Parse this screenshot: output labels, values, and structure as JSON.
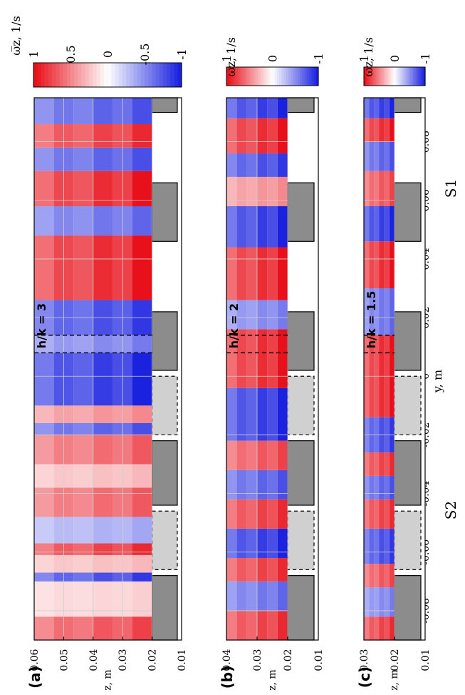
{
  "figure": {
    "panel_labels": [
      "(a)",
      "(b)",
      "(c)"
    ],
    "x_axis_label": "y, m",
    "y_axis_label": "z, m",
    "colorbar_label": "ω̅z, 1/s",
    "region_labels": {
      "left": "S2",
      "right": "S1"
    },
    "annotations": [
      "h/k = 3",
      "h/k = 2",
      "h/k = 1.5"
    ]
  },
  "colors": {
    "positive": "#e8101a",
    "negative": "#1a22e0",
    "wall_dark": "#8c8c8c",
    "wall_light": "#d0d0d0",
    "grid": "#cfcfcf"
  },
  "chart_data": [
    {
      "type": "heatmap",
      "panel": "(a)",
      "title": "h/k = 3",
      "xlabel": "y, m",
      "ylabel": "z, m",
      "xlim": [
        -0.09,
        0.095
      ],
      "ylim": [
        0.01,
        0.06
      ],
      "xticks": [
        -0.08,
        -0.06,
        -0.04,
        -0.02,
        0,
        0.02,
        0.04,
        0.06,
        0.08
      ],
      "yticks": [
        0.01,
        0.02,
        0.03,
        0.04,
        0.05,
        0.06
      ],
      "water_surface_z": 0.06,
      "bed_z": 0.02,
      "colorbar": {
        "label": "ω̅z, 1/s",
        "range": [
          -1,
          1
        ],
        "ticks": [
          1,
          0.5,
          0,
          -0.5,
          -1
        ]
      },
      "dashed_verticals_y": [
        0.008,
        0.014
      ],
      "vorticity_bands": [
        {
          "y": [
            -0.09,
            -0.082
          ],
          "sign": 0.8
        },
        {
          "y": [
            -0.082,
            -0.07
          ],
          "sign": 0.2
        },
        {
          "y": [
            -0.07,
            -0.067
          ],
          "sign": -0.9
        },
        {
          "y": [
            -0.067,
            -0.061
          ],
          "sign": 0.3
        },
        {
          "y": [
            -0.061,
            -0.057
          ],
          "sign": 0.9
        },
        {
          "y": [
            -0.057,
            -0.048
          ],
          "sign": -0.4
        },
        {
          "y": [
            -0.048,
            -0.038
          ],
          "sign": 0.7
        },
        {
          "y": [
            -0.038,
            -0.03
          ],
          "sign": 0.3
        },
        {
          "y": [
            -0.03,
            -0.02
          ],
          "sign": 0.7
        },
        {
          "y": [
            -0.02,
            -0.016
          ],
          "sign": -0.8
        },
        {
          "y": [
            -0.016,
            -0.01
          ],
          "sign": 0.5
        },
        {
          "y": [
            -0.01,
            0.008
          ],
          "sign": -1
        },
        {
          "y": [
            0.008,
            0.014
          ],
          "sign": -0.6
        },
        {
          "y": [
            0.014,
            0.026
          ],
          "sign": -0.9
        },
        {
          "y": [
            0.026,
            0.048
          ],
          "sign": 1
        },
        {
          "y": [
            0.048,
            0.058
          ],
          "sign": -0.7
        },
        {
          "y": [
            0.058,
            0.07
          ],
          "sign": 1
        },
        {
          "y": [
            0.07,
            0.078
          ],
          "sign": -0.8
        },
        {
          "y": [
            0.078,
            0.086
          ],
          "sign": 0.9
        },
        {
          "y": [
            0.086,
            0.095
          ],
          "sign": -0.8
        }
      ]
    },
    {
      "type": "heatmap",
      "panel": "(b)",
      "title": "h/k = 2",
      "xlabel": "y, m",
      "ylabel": "z, m",
      "xlim": [
        -0.09,
        0.095
      ],
      "ylim": [
        0.01,
        0.04
      ],
      "xticks": [
        -0.08,
        -0.06,
        -0.04,
        -0.02,
        0,
        0.02,
        0.04,
        0.06,
        0.08
      ],
      "yticks": [
        0.01,
        0.02,
        0.03,
        0.04
      ],
      "water_surface_z": 0.04,
      "bed_z": 0.02,
      "colorbar": {
        "label": "ω̅z, 1/s",
        "range": [
          -1,
          1
        ],
        "ticks": [
          1,
          0,
          -1
        ]
      },
      "dashed_verticals_y": [
        0.008,
        0.014
      ],
      "vorticity_bands": [
        {
          "y": [
            -0.09,
            -0.08
          ],
          "sign": 0.9
        },
        {
          "y": [
            -0.08,
            -0.07
          ],
          "sign": -0.7
        },
        {
          "y": [
            -0.07,
            -0.062
          ],
          "sign": 0.9
        },
        {
          "y": [
            -0.062,
            -0.052
          ],
          "sign": -1
        },
        {
          "y": [
            -0.052,
            -0.042
          ],
          "sign": 0.9
        },
        {
          "y": [
            -0.042,
            -0.032
          ],
          "sign": -0.8
        },
        {
          "y": [
            -0.032,
            -0.022
          ],
          "sign": 0.8
        },
        {
          "y": [
            -0.022,
            -0.004
          ],
          "sign": -1
        },
        {
          "y": [
            -0.004,
            0.016
          ],
          "sign": 1
        },
        {
          "y": [
            0.016,
            0.026
          ],
          "sign": -0.6
        },
        {
          "y": [
            0.026,
            0.044
          ],
          "sign": 1
        },
        {
          "y": [
            0.044,
            0.058
          ],
          "sign": -1
        },
        {
          "y": [
            0.058,
            0.068
          ],
          "sign": 0.5
        },
        {
          "y": [
            0.068,
            0.076
          ],
          "sign": -0.9
        },
        {
          "y": [
            0.076,
            0.088
          ],
          "sign": 1
        },
        {
          "y": [
            0.088,
            0.095
          ],
          "sign": -1
        }
      ]
    },
    {
      "type": "heatmap",
      "panel": "(c)",
      "title": "h/k = 1.5",
      "xlabel": "y, m",
      "ylabel": "z, m",
      "xlim": [
        -0.09,
        0.095
      ],
      "ylim": [
        0.01,
        0.03
      ],
      "xticks": [
        -0.08,
        -0.06,
        -0.04,
        -0.02,
        0,
        0.02,
        0.04,
        0.06,
        0.08
      ],
      "yticks": [
        0.01,
        0.02,
        0.03
      ],
      "water_surface_z": 0.03,
      "bed_z": 0.02,
      "colorbar": {
        "label": "ω̅z, 1/s",
        "range": [
          -1,
          1
        ],
        "ticks": [
          1,
          0,
          -1
        ]
      },
      "dashed_verticals_y": [
        0.008,
        0.014
      ],
      "vorticity_bands": [
        {
          "y": [
            -0.09,
            -0.082
          ],
          "sign": 0.9
        },
        {
          "y": [
            -0.082,
            -0.072
          ],
          "sign": -0.6
        },
        {
          "y": [
            -0.072,
            -0.064
          ],
          "sign": 0.8
        },
        {
          "y": [
            -0.064,
            -0.052
          ],
          "sign": -0.9
        },
        {
          "y": [
            -0.052,
            -0.042
          ],
          "sign": 0.9
        },
        {
          "y": [
            -0.042,
            -0.034
          ],
          "sign": -0.8
        },
        {
          "y": [
            -0.034,
            -0.026
          ],
          "sign": 0.9
        },
        {
          "y": [
            -0.026,
            -0.014
          ],
          "sign": -0.9
        },
        {
          "y": [
            -0.014,
            0.014
          ],
          "sign": 1
        },
        {
          "y": [
            0.014,
            0.03
          ],
          "sign": -0.7
        },
        {
          "y": [
            0.03,
            0.046
          ],
          "sign": 1
        },
        {
          "y": [
            0.046,
            0.058
          ],
          "sign": -1
        },
        {
          "y": [
            0.058,
            0.07
          ],
          "sign": 0.8
        },
        {
          "y": [
            0.07,
            0.08
          ],
          "sign": -0.8
        },
        {
          "y": [
            0.08,
            0.088
          ],
          "sign": 1
        },
        {
          "y": [
            0.088,
            0.095
          ],
          "sign": -1
        }
      ]
    }
  ],
  "walls": {
    "dark_y_ranges": [
      [
        -0.09,
        -0.068
      ],
      [
        -0.044,
        -0.022
      ],
      [
        0.002,
        0.022
      ],
      [
        0.046,
        0.066
      ],
      [
        0.09,
        0.095
      ]
    ],
    "light_y_ranges": [
      [
        -0.066,
        -0.046
      ],
      [
        -0.02,
        0
      ]
    ]
  }
}
